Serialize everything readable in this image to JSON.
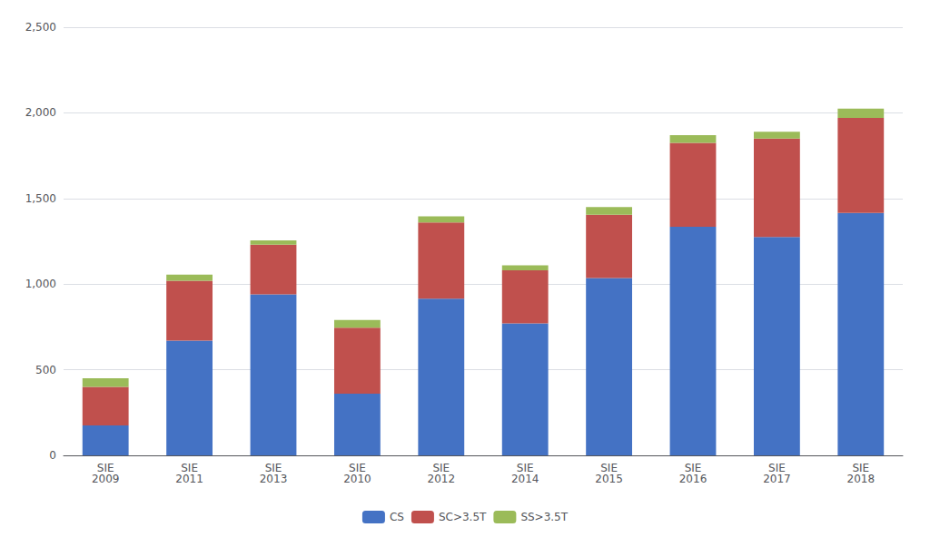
{
  "chart_data": {
    "type": "bar",
    "stacked": true,
    "categories": [
      "SIE\n2009",
      "SIE\n2011",
      "SIE\n2013",
      "SIE\n2010",
      "SIE\n2012",
      "SIE\n2014",
      "SIE\n2015",
      "SIE\n2016",
      "SIE\n2017",
      "SIE\n2018"
    ],
    "series": [
      {
        "name": "CS",
        "color": "#4472C4",
        "values": [
          175,
          670,
          940,
          360,
          915,
          770,
          1035,
          1335,
          1275,
          1415
        ]
      },
      {
        "name": "SC>3.5T",
        "color": "#C0504D",
        "values": [
          225,
          350,
          290,
          385,
          445,
          310,
          370,
          490,
          575,
          555
        ]
      },
      {
        "name": "SS>3.5T",
        "color": "#9BBB59",
        "values": [
          50,
          35,
          25,
          45,
          35,
          30,
          45,
          45,
          40,
          55
        ]
      }
    ],
    "ylim": [
      0,
      2500
    ],
    "yticks": [
      0,
      500,
      1000,
      1500,
      2000,
      2500
    ],
    "grid": true,
    "legend": "bottom"
  }
}
